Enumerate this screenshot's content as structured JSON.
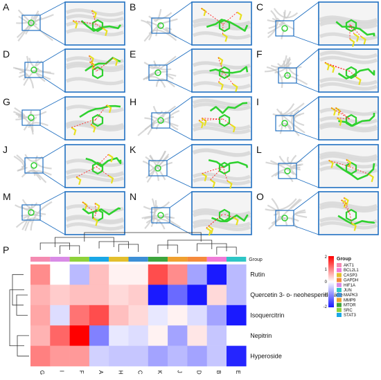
{
  "panel_letters": [
    "A",
    "B",
    "C",
    "D",
    "E",
    "F",
    "G",
    "H",
    "I",
    "J",
    "K",
    "L",
    "M",
    "N",
    "O"
  ],
  "heatmap_letter": "P",
  "chart_data": {
    "type": "heatmap",
    "columns": [
      "G",
      "I",
      "F",
      "A",
      "H",
      "C",
      "K",
      "J",
      "D",
      "B",
      "E"
    ],
    "rows": [
      "Rutin",
      "Quercetin 3- o- neohesperidoside",
      "Isoquercitrin",
      "Nepitrin",
      "Hyperoside"
    ],
    "values": [
      [
        0.9,
        0.0,
        -0.6,
        0.5,
        0.1,
        0.1,
        1.4,
        0.9,
        -0.8,
        -2.1,
        -0.6
      ],
      [
        0.6,
        0.4,
        0.5,
        0.5,
        0.3,
        0.4,
        -2.0,
        -1.3,
        -2.4,
        0.3,
        -0.6
      ],
      [
        0.7,
        -0.3,
        1.1,
        1.4,
        0.5,
        0.3,
        -0.2,
        0.1,
        -0.3,
        -0.8,
        -2.8
      ],
      [
        0.6,
        1.2,
        2.4,
        -1.1,
        -0.2,
        -0.3,
        0.1,
        -0.8,
        0.2,
        -0.5,
        0.0
      ],
      [
        1.0,
        0.8,
        0.8,
        -0.4,
        -0.5,
        -0.5,
        -0.8,
        -0.6,
        -0.8,
        -0.5,
        -1.9
      ]
    ],
    "colorscale": {
      "min": -2,
      "max": 2,
      "low": "#1a1aff",
      "mid": "#ffffff",
      "high": "#ff0000",
      "ticks": [
        "2",
        "1",
        "0",
        "-1",
        "-2"
      ]
    },
    "group_label": "Group",
    "column_groups": [
      "AKT1",
      "HIF1A",
      "SRC",
      "STAT3",
      "CASP3",
      "MAPK3",
      "MTOR",
      "MMP9",
      "GAPDH",
      "BCL2L1",
      "JUN"
    ],
    "legend": {
      "title": "Group",
      "items": [
        {
          "name": "AKT1",
          "color": "#f48bb1"
        },
        {
          "name": "BCL2L1",
          "color": "#f07ad8"
        },
        {
          "name": "CASP3",
          "color": "#e3bf2d"
        },
        {
          "name": "GAPDH",
          "color": "#f58a3c"
        },
        {
          "name": "HIF1A",
          "color": "#d98be6"
        },
        {
          "name": "JUN",
          "color": "#2ec6c6"
        },
        {
          "name": "MAPK3",
          "color": "#3c8fd6"
        },
        {
          "name": "MMP9",
          "color": "#f0a030"
        },
        {
          "name": "MTOR",
          "color": "#3da53d"
        },
        {
          "name": "SRC",
          "color": "#8ed23a"
        },
        {
          "name": "STAT3",
          "color": "#1aa7e6"
        }
      ]
    }
  },
  "colors": {
    "panel_frame": "#1f6fc1",
    "ligand": "#2fd12f",
    "residue": "#e8e020",
    "hbond": "#ff2020",
    "protein": "#c8c8c8"
  }
}
